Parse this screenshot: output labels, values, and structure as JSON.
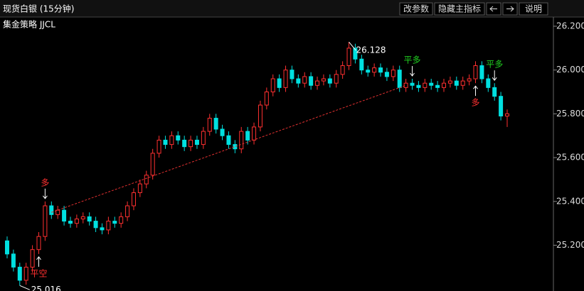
{
  "chart_data": {
    "type": "candlestick",
    "title": "现货白银 (15分钟)",
    "subtitle": "集金策略 JJCL",
    "buttons": [
      "改参数",
      "隐藏主指标",
      "说明"
    ],
    "up_color": "#ff3030",
    "down_color": "#00e0e0",
    "ylim": [
      24.991,
      26.242
    ],
    "yticks": [
      {
        "value": 26.2,
        "label": "26.200"
      },
      {
        "value": 26.0,
        "label": "26.000"
      },
      {
        "value": 25.8,
        "label": "25.800"
      },
      {
        "value": 25.6,
        "label": "25.600"
      },
      {
        "value": 25.4,
        "label": "25.400"
      },
      {
        "value": 25.2,
        "label": "25.200"
      }
    ],
    "open": [
      25.22,
      25.16,
      25.1,
      25.04,
      25.1,
      25.18,
      25.24,
      25.38,
      25.34,
      25.36,
      25.31,
      25.3,
      25.32,
      25.33,
      25.31,
      25.28,
      25.27,
      25.31,
      25.3,
      25.33,
      25.38,
      25.44,
      25.48,
      25.52,
      25.62,
      25.68,
      25.66,
      25.7,
      25.68,
      25.65,
      25.68,
      25.66,
      25.72,
      25.78,
      25.73,
      25.7,
      25.66,
      25.64,
      25.72,
      25.68,
      25.74,
      25.84,
      25.9,
      25.96,
      25.92,
      26.0,
      25.96,
      25.94,
      25.97,
      25.93,
      25.95,
      25.96,
      25.94,
      25.98,
      26.02,
      26.1,
      26.05,
      26.0,
      25.99,
      26.01,
      25.99,
      25.97,
      26.0,
      25.92,
      25.94,
      25.93,
      25.92,
      25.94,
      25.93,
      25.92,
      25.94,
      25.95,
      25.93,
      25.95,
      25.96,
      26.02,
      25.96,
      25.92,
      25.88,
      25.79
    ],
    "high": [
      25.24,
      25.18,
      25.12,
      25.12,
      25.2,
      25.26,
      25.4,
      25.4,
      25.38,
      25.38,
      25.33,
      25.34,
      25.35,
      25.35,
      25.33,
      25.3,
      25.33,
      25.33,
      25.35,
      25.4,
      25.46,
      25.5,
      25.54,
      25.64,
      25.7,
      25.7,
      25.72,
      25.72,
      25.7,
      25.7,
      25.7,
      25.74,
      25.8,
      25.8,
      25.75,
      25.72,
      25.68,
      25.74,
      25.74,
      25.76,
      25.86,
      25.92,
      25.98,
      25.98,
      26.02,
      26.02,
      25.98,
      25.99,
      25.99,
      25.97,
      25.98,
      25.98,
      26.0,
      26.04,
      26.128,
      26.12,
      26.07,
      26.02,
      26.03,
      26.03,
      26.01,
      26.02,
      26.02,
      25.96,
      25.96,
      25.95,
      25.96,
      25.96,
      25.95,
      25.96,
      25.97,
      25.97,
      25.97,
      25.98,
      26.04,
      26.04,
      25.98,
      25.94,
      25.9,
      25.82
    ],
    "low": [
      25.14,
      25.08,
      25.016,
      25.02,
      25.08,
      25.16,
      25.22,
      25.32,
      25.32,
      25.29,
      25.28,
      25.28,
      25.3,
      25.29,
      25.26,
      25.25,
      25.25,
      25.28,
      25.28,
      25.31,
      25.36,
      25.42,
      25.46,
      25.5,
      25.6,
      25.64,
      25.64,
      25.66,
      25.63,
      25.63,
      25.64,
      25.64,
      25.7,
      25.71,
      25.68,
      25.64,
      25.62,
      25.62,
      25.66,
      25.66,
      25.72,
      25.82,
      25.88,
      25.9,
      25.9,
      25.94,
      25.92,
      25.92,
      25.91,
      25.91,
      25.93,
      25.92,
      25.92,
      25.96,
      26.0,
      26.03,
      25.98,
      25.97,
      25.97,
      25.97,
      25.95,
      25.95,
      25.9,
      25.9,
      25.91,
      25.9,
      25.9,
      25.91,
      25.9,
      25.9,
      25.92,
      25.91,
      25.91,
      25.93,
      25.94,
      25.94,
      25.9,
      25.86,
      25.77,
      25.74
    ],
    "close": [
      25.16,
      25.1,
      25.04,
      25.1,
      25.18,
      25.24,
      25.38,
      25.34,
      25.36,
      25.31,
      25.3,
      25.32,
      25.33,
      25.31,
      25.28,
      25.27,
      25.31,
      25.3,
      25.33,
      25.38,
      25.44,
      25.48,
      25.52,
      25.62,
      25.68,
      25.66,
      25.7,
      25.68,
      25.65,
      25.68,
      25.66,
      25.72,
      25.78,
      25.73,
      25.7,
      25.66,
      25.64,
      25.72,
      25.68,
      25.74,
      25.84,
      25.9,
      25.96,
      25.92,
      26.0,
      25.96,
      25.94,
      25.97,
      25.93,
      25.95,
      25.96,
      25.94,
      25.98,
      26.02,
      26.1,
      26.05,
      26.0,
      25.99,
      26.01,
      25.99,
      25.97,
      26.0,
      25.92,
      25.94,
      25.93,
      25.92,
      25.94,
      25.93,
      25.92,
      25.94,
      25.95,
      25.93,
      25.95,
      25.96,
      26.02,
      25.96,
      25.92,
      25.88,
      25.79,
      25.8
    ],
    "extremes": [
      {
        "value": 25.016,
        "candle": 2,
        "side": "low"
      },
      {
        "value": 26.128,
        "candle": 54,
        "side": "high"
      }
    ],
    "signals": [
      {
        "text": "多",
        "candle": 6,
        "side": "above",
        "color": "#ff3030"
      },
      {
        "text": "平空",
        "candle": 5,
        "side": "below",
        "color": "#ff3030"
      },
      {
        "text": "平多",
        "candle": 64,
        "side": "above",
        "color": "#20d020"
      },
      {
        "text": "多",
        "candle": 74,
        "side": "below",
        "color": "#ff3030"
      },
      {
        "text": "平多",
        "candle": 77,
        "side": "above",
        "color": "#20d020"
      }
    ],
    "trend_line": {
      "from": {
        "candle": 7,
        "value": 25.35
      },
      "to": {
        "candle": 63,
        "value": 25.93
      },
      "color": "#e03030"
    }
  }
}
